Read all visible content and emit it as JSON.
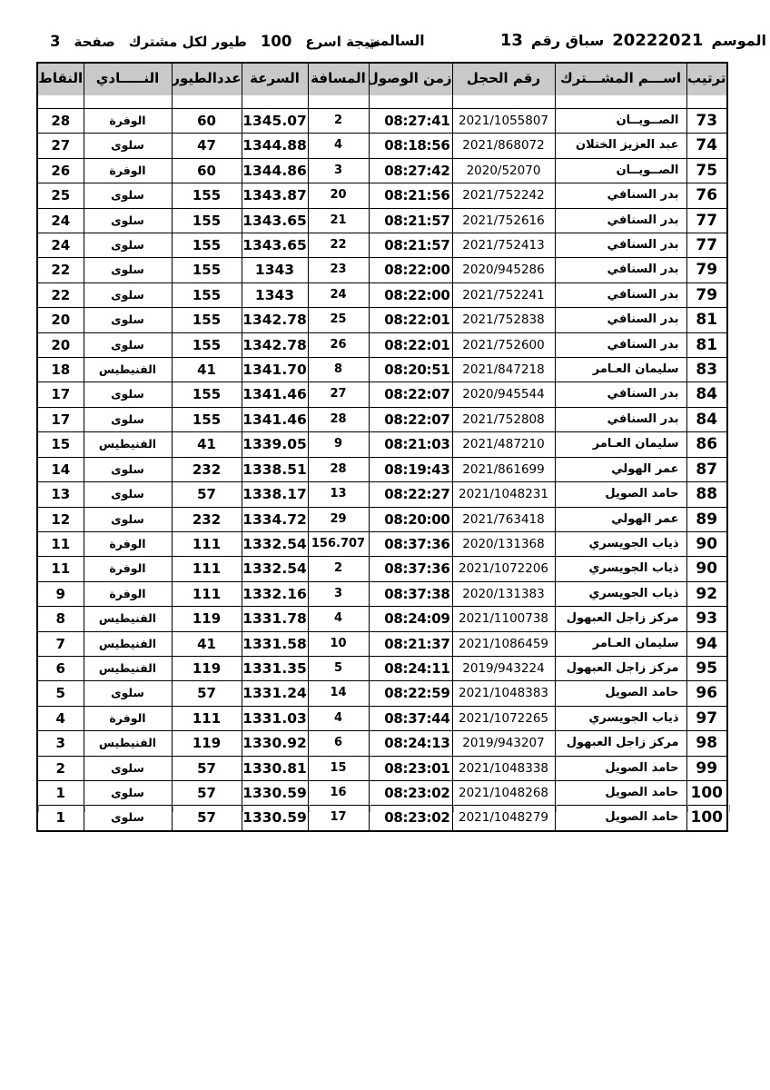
{
  "title": {
    "season_label": "الموسم",
    "season_value": "20222021",
    "race_label": "سباق رقم",
    "race_number": "13",
    "venue": "السالمي",
    "result_label": "نتيجة اسرع",
    "fastest_count": "100",
    "scope_label": "طيور لكل مشترك",
    "page_label": "صفحة",
    "page_number": "3"
  },
  "table": {
    "headers": {
      "rank": "ترتيب",
      "participant": "اســـم المشـــترك",
      "ring": "رقم الحجل",
      "time": "زمن الوصول",
      "distance": "المسافة",
      "speed": "السرعة",
      "birds": "عددالطيور",
      "club": "النـــــادي",
      "points": "النقاط"
    },
    "rows": [
      {
        "rank": "73",
        "participant": "الصــويــان",
        "ring": "2021/1055807",
        "time": "08:27:41",
        "distance": "2",
        "speed": "1345.07",
        "birds": "60",
        "club": "الوفرة",
        "points": "28"
      },
      {
        "rank": "74",
        "participant": "عبد العزيز الختلان",
        "ring": "2021/868072",
        "time": "08:18:56",
        "distance": "4",
        "speed": "1344.88",
        "birds": "47",
        "club": "سلوى",
        "points": "27"
      },
      {
        "rank": "75",
        "participant": "الصــويــان",
        "ring": "2020/52070",
        "time": "08:27:42",
        "distance": "3",
        "speed": "1344.86",
        "birds": "60",
        "club": "الوفرة",
        "points": "26"
      },
      {
        "rank": "76",
        "participant": "بدر السنافي",
        "ring": "2021/752242",
        "time": "08:21:56",
        "distance": "20",
        "speed": "1343.87",
        "birds": "155",
        "club": "سلوى",
        "points": "25"
      },
      {
        "rank": "77",
        "participant": "بدر السنافي",
        "ring": "2021/752616",
        "time": "08:21:57",
        "distance": "21",
        "speed": "1343.65",
        "birds": "155",
        "club": "سلوى",
        "points": "24"
      },
      {
        "rank": "77",
        "participant": "بدر السنافي",
        "ring": "2021/752413",
        "time": "08:21:57",
        "distance": "22",
        "speed": "1343.65",
        "birds": "155",
        "club": "سلوى",
        "points": "24"
      },
      {
        "rank": "79",
        "participant": "بدر السنافي",
        "ring": "2020/945286",
        "time": "08:22:00",
        "distance": "23",
        "speed": "1343",
        "birds": "155",
        "club": "سلوى",
        "points": "22"
      },
      {
        "rank": "79",
        "participant": "بدر السنافي",
        "ring": "2021/752241",
        "time": "08:22:00",
        "distance": "24",
        "speed": "1343",
        "birds": "155",
        "club": "سلوى",
        "points": "22"
      },
      {
        "rank": "81",
        "participant": "بدر السنافي",
        "ring": "2021/752838",
        "time": "08:22:01",
        "distance": "25",
        "speed": "1342.78",
        "birds": "155",
        "club": "سلوى",
        "points": "20"
      },
      {
        "rank": "81",
        "participant": "بدر السنافي",
        "ring": "2021/752600",
        "time": "08:22:01",
        "distance": "26",
        "speed": "1342.78",
        "birds": "155",
        "club": "سلوى",
        "points": "20"
      },
      {
        "rank": "83",
        "participant": "سليمان العـامر",
        "ring": "2021/847218",
        "time": "08:20:51",
        "distance": "8",
        "speed": "1341.70",
        "birds": "41",
        "club": "الفنيطيس",
        "points": "18"
      },
      {
        "rank": "84",
        "participant": "بدر السنافي",
        "ring": "2020/945544",
        "time": "08:22:07",
        "distance": "27",
        "speed": "1341.46",
        "birds": "155",
        "club": "سلوى",
        "points": "17"
      },
      {
        "rank": "84",
        "participant": "بدر السنافي",
        "ring": "2021/752808",
        "time": "08:22:07",
        "distance": "28",
        "speed": "1341.46",
        "birds": "155",
        "club": "سلوى",
        "points": "17"
      },
      {
        "rank": "86",
        "participant": "سليمان العـامر",
        "ring": "2021/487210",
        "time": "08:21:03",
        "distance": "9",
        "speed": "1339.05",
        "birds": "41",
        "club": "الفنيطيس",
        "points": "15"
      },
      {
        "rank": "87",
        "participant": "عمر الهولي",
        "ring": "2021/861699",
        "time": "08:19:43",
        "distance": "28",
        "speed": "1338.51",
        "birds": "232",
        "club": "سلوى",
        "points": "14"
      },
      {
        "rank": "88",
        "participant": "حامد الصويل",
        "ring": "2021/1048231",
        "time": "08:22:27",
        "distance": "13",
        "speed": "1338.17",
        "birds": "57",
        "club": "سلوى",
        "points": "13"
      },
      {
        "rank": "89",
        "participant": "عمر الهولي",
        "ring": "2021/763418",
        "time": "08:20:00",
        "distance": "29",
        "speed": "1334.72",
        "birds": "232",
        "club": "سلوى",
        "points": "12"
      },
      {
        "rank": "90",
        "participant": "ذياب الجويسري",
        "ring": "2020/131368",
        "time": "08:37:36",
        "distance": "156.707",
        "speed": "1332.54",
        "birds": "111",
        "club": "الوفرة",
        "points": "11"
      },
      {
        "rank": "90",
        "participant": "ذياب الجويسري",
        "ring": "2021/1072206",
        "time": "08:37:36",
        "distance": "2",
        "speed": "1332.54",
        "birds": "111",
        "club": "الوفرة",
        "points": "11"
      },
      {
        "rank": "92",
        "participant": "ذياب الجويسري",
        "ring": "2020/131383",
        "time": "08:37:38",
        "distance": "3",
        "speed": "1332.16",
        "birds": "111",
        "club": "الوفرة",
        "points": "9"
      },
      {
        "rank": "93",
        "participant": "مركز زاجل العبهول",
        "ring": "2021/1100738",
        "time": "08:24:09",
        "distance": "4",
        "speed": "1331.78",
        "birds": "119",
        "club": "الفنيطيس",
        "points": "8"
      },
      {
        "rank": "94",
        "participant": "سليمان العـامر",
        "ring": "2021/1086459",
        "time": "08:21:37",
        "distance": "10",
        "speed": "1331.58",
        "birds": "41",
        "club": "الفنيطيس",
        "points": "7"
      },
      {
        "rank": "95",
        "participant": "مركز زاجل العبهول",
        "ring": "2019/943224",
        "time": "08:24:11",
        "distance": "5",
        "speed": "1331.35",
        "birds": "119",
        "club": "الفنيطيس",
        "points": "6"
      },
      {
        "rank": "96",
        "participant": "حامد الصويل",
        "ring": "2021/1048383",
        "time": "08:22:59",
        "distance": "14",
        "speed": "1331.24",
        "birds": "57",
        "club": "سلوى",
        "points": "5"
      },
      {
        "rank": "97",
        "participant": "ذياب الجويسري",
        "ring": "2021/1072265",
        "time": "08:37:44",
        "distance": "4",
        "speed": "1331.03",
        "birds": "111",
        "club": "الوفرة",
        "points": "4"
      },
      {
        "rank": "98",
        "participant": "مركز زاجل العبهول",
        "ring": "2019/943207",
        "time": "08:24:13",
        "distance": "6",
        "speed": "1330.92",
        "birds": "119",
        "club": "الفنيطيس",
        "points": "3"
      },
      {
        "rank": "99",
        "participant": "حامد الصويل",
        "ring": "2021/1048338",
        "time": "08:23:01",
        "distance": "15",
        "speed": "1330.81",
        "birds": "57",
        "club": "سلوى",
        "points": "2"
      },
      {
        "rank": "100",
        "participant": "حامد الصويل",
        "ring": "2021/1048268",
        "time": "08:23:02",
        "distance": "16",
        "speed": "1330.59",
        "birds": "57",
        "club": "سلوى",
        "points": "1"
      },
      {
        "rank": "100",
        "participant": "حامد الصويل",
        "ring": "2021/1048279",
        "time": "08:23:02",
        "distance": "17",
        "speed": "1330.59",
        "birds": "57",
        "club": "سلوى",
        "points": "1"
      }
    ]
  },
  "colors": {
    "header_bg": "#c9c9c9",
    "border": "#000000",
    "tick": "#9b9b9b"
  }
}
